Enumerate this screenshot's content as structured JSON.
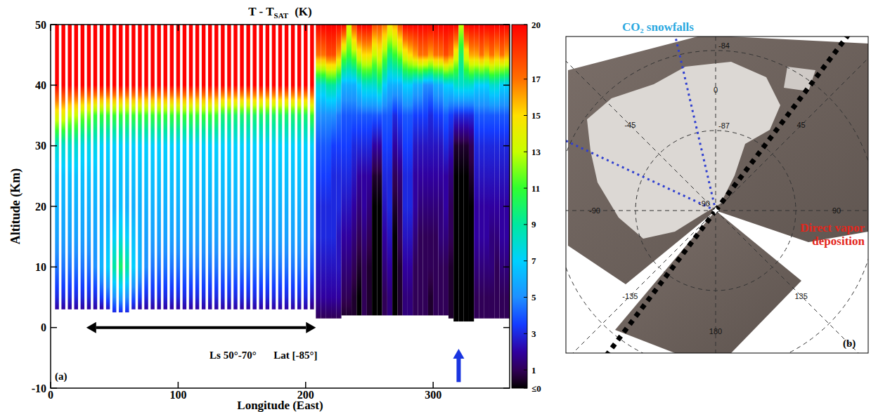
{
  "chart_data": [
    {
      "type": "heatmap",
      "title": "T - T",
      "title_subscript": "SAT",
      "title_unit": "(K)",
      "x_label": "Longitude (East)",
      "y_label": "Altitude (Km)",
      "xlim": [
        0,
        360
      ],
      "xticks": [
        0,
        100,
        200,
        300
      ],
      "ylim": [
        -10,
        50
      ],
      "yticks": [
        -10,
        0,
        10,
        20,
        30,
        40,
        50
      ],
      "x": [
        5,
        10,
        15,
        20,
        25,
        30,
        35,
        40,
        45,
        50,
        55,
        60,
        65,
        70,
        75,
        80,
        85,
        90,
        95,
        100,
        105,
        110,
        115,
        120,
        125,
        130,
        135,
        140,
        145,
        150,
        155,
        160,
        165,
        170,
        175,
        180,
        185,
        190,
        195,
        200,
        205,
        210,
        214,
        218,
        222,
        226,
        230,
        234,
        238,
        242,
        246,
        250,
        254,
        258,
        262,
        266,
        270,
        274,
        278,
        282,
        286,
        290,
        294,
        298,
        302,
        306,
        310,
        314,
        318,
        322,
        326,
        330,
        334,
        338,
        342,
        346,
        350,
        354,
        358
      ],
      "bottom": [
        3,
        3,
        3,
        3,
        3,
        3,
        3,
        3,
        3,
        2.5,
        2.5,
        2.5,
        3,
        3,
        3,
        3,
        3,
        3,
        3,
        3,
        3,
        3,
        3,
        3,
        3,
        3,
        3,
        3,
        3,
        3,
        3,
        3,
        3,
        3,
        3,
        3,
        3,
        3,
        3,
        3,
        3,
        1.5,
        1.5,
        1.5,
        1.5,
        1.5,
        2,
        2,
        2,
        2,
        2,
        2,
        2,
        2,
        2,
        2,
        2,
        2,
        2,
        2,
        2,
        2,
        2,
        2,
        2,
        2,
        2,
        1.5,
        1,
        1,
        1,
        1,
        1.5,
        1.5,
        1.5,
        1.5,
        1.5,
        1.5,
        1.5
      ],
      "bottom_values": [
        2,
        2,
        2,
        2,
        2,
        2,
        2,
        2,
        2.5,
        3,
        3,
        3,
        2.5,
        2,
        2,
        2,
        2,
        2,
        2,
        2,
        2,
        2,
        2,
        2,
        2,
        2,
        2,
        2,
        2,
        2,
        2,
        2,
        2,
        2,
        2,
        2,
        2,
        2,
        2,
        2,
        1.5,
        1,
        1,
        1,
        1,
        1,
        0.5,
        0.5,
        0.5,
        0,
        1,
        0.5,
        0,
        0,
        1,
        1.5,
        0,
        0.5,
        1.5,
        1.5,
        1,
        1,
        1,
        0.5,
        1,
        1,
        1,
        0.5,
        0,
        0,
        0,
        0,
        1,
        1,
        1,
        1,
        1,
        1,
        1
      ],
      "levels": [
        5,
        10,
        15,
        20,
        25,
        30,
        35,
        40,
        45,
        50
      ],
      "z": [
        [
          3,
          4.5,
          5.5,
          6,
          6.5,
          8,
          14,
          20,
          20,
          20
        ],
        [
          3,
          4.5,
          5.5,
          6,
          6.5,
          8,
          14,
          20,
          20,
          20
        ],
        [
          3,
          4.5,
          5.5,
          6,
          6.5,
          8,
          13,
          20,
          20,
          20
        ],
        [
          3,
          4.5,
          5.5,
          6,
          6.5,
          8,
          13,
          20,
          20,
          20
        ],
        [
          3,
          4.5,
          5.5,
          6,
          6.5,
          7.5,
          12,
          20,
          20,
          20
        ],
        [
          3,
          4.5,
          5.5,
          6,
          6.5,
          7.5,
          12,
          20,
          20,
          20
        ],
        [
          3,
          5,
          5.5,
          6,
          6.5,
          7.5,
          11,
          20,
          20,
          20
        ],
        [
          3.5,
          6,
          6,
          6,
          6.5,
          7,
          11,
          20,
          20,
          20
        ],
        [
          4,
          7,
          6.5,
          6,
          6.5,
          7,
          11,
          20,
          20,
          20
        ],
        [
          5,
          9,
          7,
          6,
          6.5,
          7,
          11,
          20,
          20,
          20
        ],
        [
          5.5,
          10,
          7.5,
          6.5,
          6.5,
          7,
          11,
          20,
          20,
          20
        ],
        [
          5,
          9,
          7,
          6,
          6.5,
          7,
          11,
          20,
          20,
          20
        ],
        [
          4,
          7,
          6.5,
          6,
          6.5,
          7,
          11,
          20,
          20,
          20
        ],
        [
          3.5,
          6,
          6,
          6,
          6.5,
          7,
          11,
          20,
          20,
          20
        ],
        [
          3,
          5,
          5.5,
          6,
          6.5,
          7,
          11,
          20,
          20,
          20
        ],
        [
          3,
          4.5,
          5.5,
          6,
          6.5,
          7,
          11,
          20,
          20,
          20
        ],
        [
          3,
          4.5,
          5.5,
          6,
          6.5,
          7,
          11,
          20,
          20,
          20
        ],
        [
          3,
          4.5,
          5.5,
          6,
          6.5,
          7,
          11,
          20,
          20,
          20
        ],
        [
          3,
          4.5,
          5.5,
          6,
          6.5,
          7,
          11,
          20,
          20,
          20
        ],
        [
          3,
          4.5,
          5.5,
          6,
          6.5,
          7,
          11,
          20,
          20,
          20
        ],
        [
          3,
          4.5,
          5.5,
          6,
          6.5,
          7,
          11,
          20,
          20,
          20
        ],
        [
          3,
          4.5,
          5.5,
          6,
          6.5,
          7,
          11,
          20,
          20,
          20
        ],
        [
          3,
          4.5,
          5.5,
          6,
          6.5,
          7,
          11,
          20,
          20,
          20
        ],
        [
          3,
          4.5,
          5.5,
          6,
          6.5,
          7,
          11,
          20,
          20,
          20
        ],
        [
          3,
          4.5,
          5.5,
          6,
          6.5,
          7,
          11,
          20,
          20,
          20
        ],
        [
          3,
          4.5,
          5.5,
          6,
          6.5,
          7,
          11,
          20,
          20,
          20
        ],
        [
          3,
          4.5,
          5.5,
          6,
          6.5,
          7,
          10,
          20,
          20,
          20
        ],
        [
          3,
          4.5,
          5.5,
          6,
          6.5,
          7,
          10,
          20,
          20,
          20
        ],
        [
          3,
          4.5,
          5.5,
          6,
          6.5,
          7,
          10,
          20,
          20,
          20
        ],
        [
          3,
          4.5,
          5.5,
          6,
          6.5,
          7,
          10,
          20,
          20,
          20
        ],
        [
          3,
          4.5,
          5.5,
          6,
          6.5,
          7,
          10,
          20,
          20,
          20
        ],
        [
          3,
          4.5,
          5.5,
          6,
          6.5,
          7,
          10,
          20,
          20,
          20
        ],
        [
          3,
          4.5,
          5.5,
          6,
          6.5,
          7,
          10,
          20,
          20,
          20
        ],
        [
          3,
          4.5,
          5.5,
          6,
          6.5,
          7,
          10,
          20,
          20,
          20
        ],
        [
          3,
          4.5,
          5.5,
          6,
          6.5,
          7,
          10,
          20,
          20,
          20
        ],
        [
          3,
          4.5,
          5.5,
          6,
          6.5,
          7,
          10,
          20,
          20,
          20
        ],
        [
          3,
          4.5,
          5.5,
          6,
          6.5,
          7,
          10,
          20,
          20,
          20
        ],
        [
          3,
          4.5,
          5.5,
          6,
          6.5,
          7,
          10,
          20,
          20,
          20
        ],
        [
          3,
          4.5,
          5.5,
          6,
          6.5,
          7,
          10,
          20,
          20,
          20
        ],
        [
          3,
          4.5,
          5.5,
          6,
          6.5,
          7,
          10,
          20,
          20,
          20
        ],
        [
          2.5,
          4,
          5,
          5.5,
          6,
          7,
          11,
          20,
          20,
          20
        ],
        [
          2,
          2.5,
          3,
          3,
          3.5,
          4,
          5,
          8,
          17,
          20
        ],
        [
          2,
          2.5,
          3,
          3,
          3.5,
          4,
          5,
          8,
          17,
          20
        ],
        [
          2,
          2.5,
          3,
          3,
          3.5,
          4,
          5,
          9,
          18,
          20
        ],
        [
          2,
          2.5,
          3,
          3,
          3,
          3.5,
          5,
          9,
          18,
          20
        ],
        [
          2,
          2.5,
          2.5,
          3,
          3,
          3.5,
          4.5,
          8,
          16,
          20
        ],
        [
          1,
          1.5,
          2,
          2.5,
          3,
          3.5,
          4,
          6,
          12,
          20
        ],
        [
          1,
          1.5,
          2,
          2.5,
          3,
          3.5,
          4,
          6,
          11,
          14
        ],
        [
          0.5,
          1,
          1.5,
          2,
          2.5,
          3,
          4,
          6,
          12,
          18
        ],
        [
          0,
          0.5,
          1,
          1.5,
          2,
          3,
          4,
          7,
          14,
          20
        ],
        [
          1,
          1,
          1.5,
          2,
          2,
          3,
          4,
          8,
          15,
          20
        ],
        [
          0.5,
          0.5,
          1,
          1.5,
          2,
          3,
          4,
          8,
          15,
          20
        ],
        [
          0,
          0,
          0,
          0,
          0.5,
          2,
          4,
          8,
          13,
          18
        ],
        [
          0,
          0,
          0,
          0,
          0.5,
          2,
          4,
          9,
          14,
          18
        ],
        [
          1,
          1.5,
          2,
          2.5,
          3,
          3.5,
          4,
          7,
          12,
          17
        ],
        [
          1.5,
          2,
          2.5,
          3,
          3,
          3.5,
          4,
          6,
          10,
          15
        ],
        [
          0,
          0,
          0,
          0.5,
          1,
          2,
          3,
          6,
          11,
          16
        ],
        [
          0.5,
          0.5,
          1,
          1,
          1.5,
          2.5,
          3.5,
          6,
          12,
          18
        ],
        [
          1.5,
          2,
          2.5,
          3,
          3,
          3.5,
          4,
          7,
          14,
          20
        ],
        [
          1.5,
          2,
          2.5,
          3,
          3,
          3.5,
          4,
          7,
          15,
          20
        ],
        [
          1,
          1,
          1.5,
          2,
          2,
          2.5,
          3.5,
          6,
          16,
          20
        ],
        [
          1,
          1,
          1,
          1.5,
          2,
          2.5,
          3.5,
          6,
          17,
          20
        ],
        [
          1,
          1,
          1,
          1.5,
          2,
          2.5,
          3.5,
          5,
          17,
          20
        ],
        [
          0.5,
          1,
          1,
          1.5,
          2,
          2.5,
          3,
          5,
          16,
          20
        ],
        [
          1,
          1,
          1,
          1.5,
          2,
          2.5,
          3.5,
          6,
          17,
          20
        ],
        [
          1,
          1,
          1.5,
          1.5,
          2,
          2.5,
          3.5,
          6,
          17,
          20
        ],
        [
          1,
          1,
          1.5,
          2,
          2,
          3,
          4,
          7,
          18,
          20
        ],
        [
          0.5,
          0.5,
          1,
          1,
          1.5,
          2.5,
          3.5,
          7,
          17,
          20
        ],
        [
          0,
          0,
          0,
          0,
          0,
          0.5,
          3,
          8,
          14,
          20
        ],
        [
          0,
          0,
          0,
          0,
          0,
          0.5,
          3,
          8,
          10,
          13
        ],
        [
          0,
          0,
          0,
          0,
          0,
          0.5,
          3,
          8,
          14,
          20
        ],
        [
          0,
          0,
          0,
          0,
          0.5,
          1,
          3,
          8,
          16,
          20
        ],
        [
          1,
          1.5,
          2,
          2,
          2.5,
          3,
          4,
          7,
          16,
          20
        ],
        [
          1,
          1.5,
          2,
          2,
          2.5,
          3,
          4,
          7,
          17,
          20
        ],
        [
          1,
          1.5,
          2,
          2,
          2.5,
          3,
          4,
          7,
          16,
          20
        ],
        [
          1,
          1.5,
          1.5,
          2,
          2.5,
          3,
          4,
          8,
          17,
          20
        ],
        [
          1,
          1,
          1.5,
          2,
          2.5,
          3,
          4,
          8,
          16,
          20
        ],
        [
          1,
          1.5,
          2,
          2,
          2.5,
          3,
          4,
          7,
          17,
          20
        ],
        [
          1,
          1.5,
          2,
          2,
          2.5,
          3,
          4,
          7,
          16,
          20
        ]
      ],
      "colorbar": {
        "range": [
          0,
          20
        ],
        "ticks": [
          {
            "value": 0,
            "label": "≤0"
          },
          1,
          3,
          5,
          7,
          9,
          11,
          13,
          15,
          17,
          20
        ]
      },
      "arrows": [
        {
          "x": [
            28,
            208
          ],
          "y": [
            0,
            0
          ],
          "marker": "double_arrow",
          "color": "#000000"
        },
        {
          "x": [
            320,
            320
          ],
          "y": [
            -9,
            -3.5
          ],
          "marker": "arrow",
          "color": "#1a35e0"
        }
      ],
      "annotations": [
        {
          "text": "Ls 50°-70°",
          "x": 143,
          "y": -4.5
        },
        {
          "text": "Lat [-85°]",
          "x": 192,
          "y": -4.5
        }
      ],
      "panel": "(a)"
    },
    {
      "type": "map",
      "panel": "(b)",
      "lat_rings": [
        -84,
        -87
      ],
      "center_label": -90,
      "lon_labels": [
        0,
        45,
        90,
        135,
        180,
        -135,
        -90,
        -45
      ],
      "sectors": [
        {
          "label": "CO₂ snowfalls",
          "lons": [
            -65,
            -13
          ],
          "color": "#2f3fd0",
          "line_style": "dotted"
        },
        {
          "label": "Direct vapor deposition",
          "lons": [
            37,
            217
          ],
          "color": "#000000",
          "line_style": "dotted"
        }
      ]
    }
  ]
}
